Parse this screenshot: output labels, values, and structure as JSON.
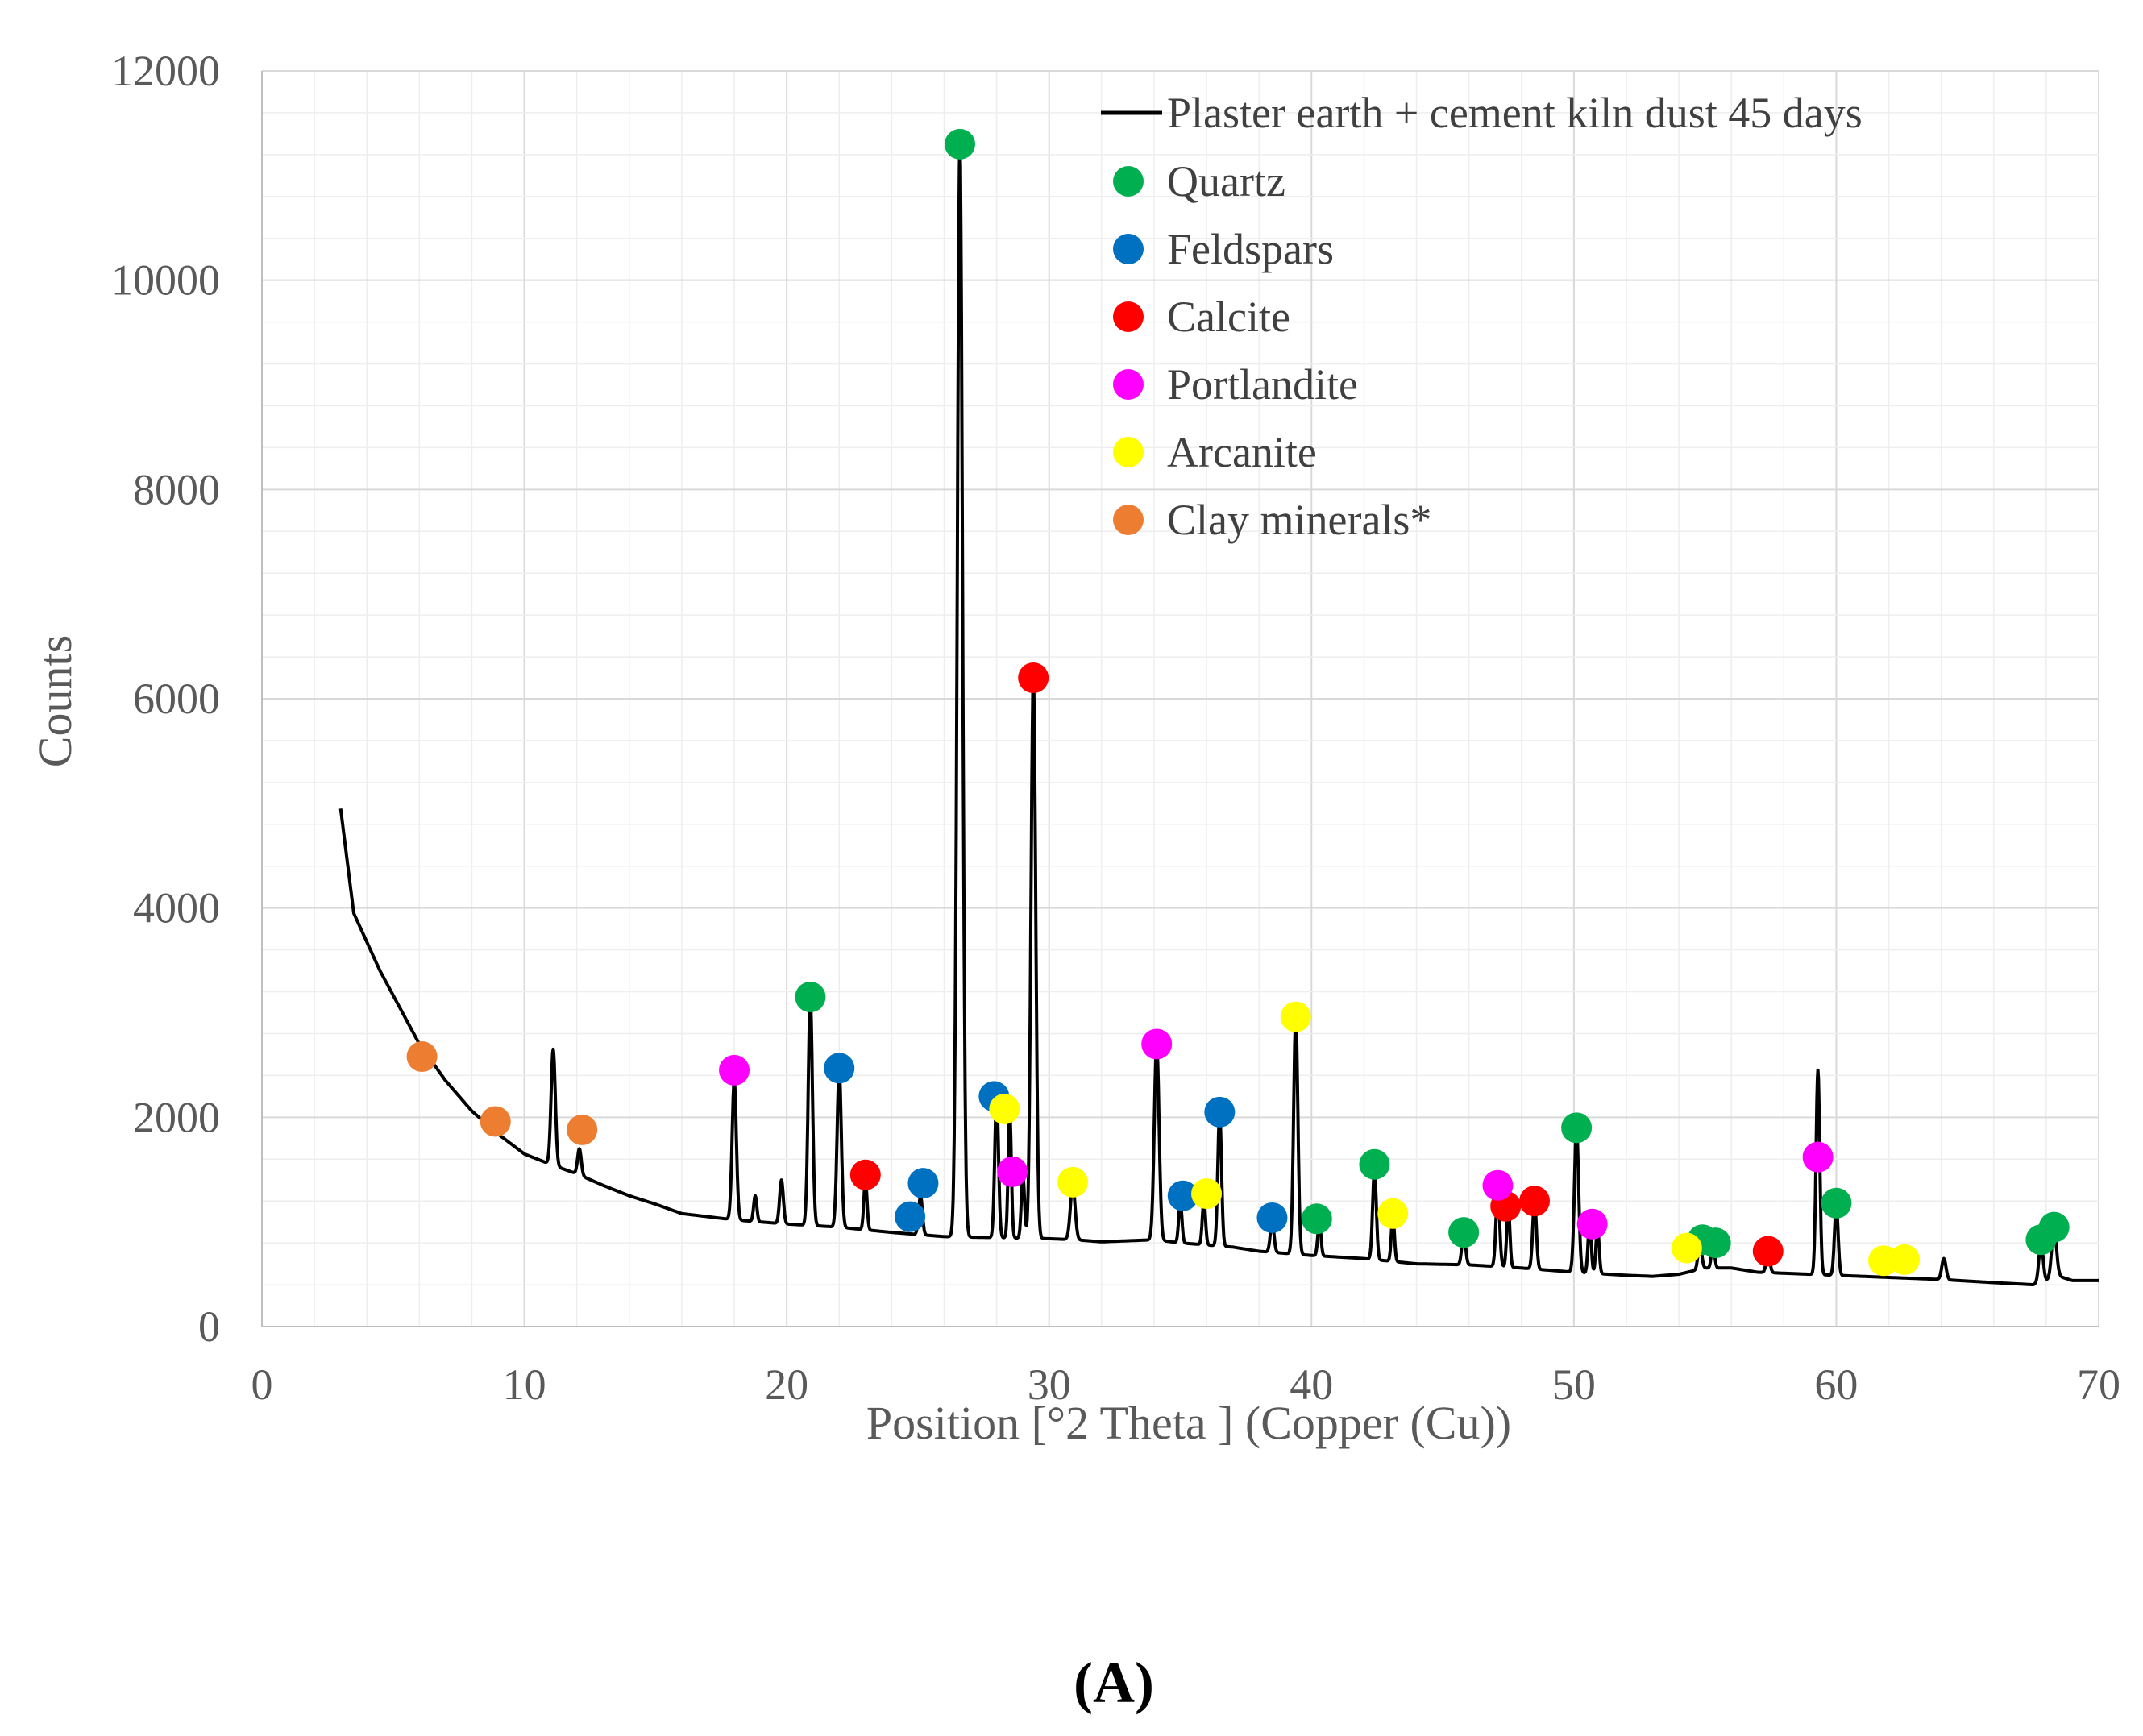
{
  "chart_data": {
    "type": "line",
    "xlabel": "Position [°2 Theta ] (Copper (Cu))",
    "ylabel": "Counts",
    "xlim": [
      0,
      70
    ],
    "ylim": [
      0,
      12000
    ],
    "x_ticks": [
      "0",
      "10",
      "20",
      "30",
      "40",
      "50",
      "60",
      "70"
    ],
    "y_ticks": [
      "0",
      "2000",
      "4000",
      "6000",
      "8000",
      "10000",
      "12000"
    ],
    "grid": true,
    "legend_position": "top-right",
    "panel_label": "A",
    "line_series": {
      "name": "Plaster earth + cement kiln dust 45 days",
      "color": "#000000",
      "baseline": [
        [
          3,
          4950
        ],
        [
          3.5,
          3950
        ],
        [
          4.5,
          3400
        ],
        [
          6,
          2700
        ],
        [
          7,
          2350
        ],
        [
          8,
          2060
        ],
        [
          9,
          1840
        ],
        [
          10,
          1650
        ],
        [
          11,
          1550
        ],
        [
          12,
          1460
        ],
        [
          13,
          1350
        ],
        [
          14,
          1250
        ],
        [
          15,
          1170
        ],
        [
          16,
          1080
        ],
        [
          17,
          1050
        ],
        [
          18,
          1020
        ],
        [
          20,
          980
        ],
        [
          22,
          950
        ],
        [
          24,
          900
        ],
        [
          26,
          860
        ],
        [
          28,
          850
        ],
        [
          30,
          840
        ],
        [
          31,
          830
        ],
        [
          32,
          810
        ],
        [
          33,
          820
        ],
        [
          34,
          830
        ],
        [
          35,
          800
        ],
        [
          37,
          760
        ],
        [
          38,
          720
        ],
        [
          39,
          700
        ],
        [
          40,
          680
        ],
        [
          42,
          650
        ],
        [
          44,
          600
        ],
        [
          46,
          590
        ],
        [
          48,
          560
        ],
        [
          50,
          520
        ],
        [
          52,
          490
        ],
        [
          53,
          480
        ],
        [
          54,
          500
        ],
        [
          55,
          560
        ],
        [
          56,
          560
        ],
        [
          57,
          520
        ],
        [
          58,
          510
        ],
        [
          59,
          500
        ],
        [
          60,
          490
        ],
        [
          62,
          470
        ],
        [
          64,
          450
        ],
        [
          66,
          420
        ],
        [
          67.5,
          400
        ],
        [
          68.5,
          480
        ],
        [
          69,
          440
        ],
        [
          70,
          440
        ]
      ],
      "peaks": [
        [
          11.1,
          2650,
          0.08
        ],
        [
          12.1,
          1700,
          0.07
        ],
        [
          18.0,
          2350,
          0.08
        ],
        [
          18.8,
          1250,
          0.06
        ],
        [
          19.8,
          1400,
          0.07
        ],
        [
          20.9,
          3150,
          0.08
        ],
        [
          22.0,
          2450,
          0.08
        ],
        [
          23.0,
          1400,
          0.06
        ],
        [
          25.1,
          1250,
          0.07
        ],
        [
          26.6,
          11300,
          0.1
        ],
        [
          28.0,
          2200,
          0.07
        ],
        [
          28.5,
          2050,
          0.06
        ],
        [
          29.0,
          1450,
          0.06
        ],
        [
          29.4,
          6200,
          0.09
        ],
        [
          30.9,
          1350,
          0.09
        ],
        [
          34.1,
          2700,
          0.09
        ],
        [
          35.0,
          1200,
          0.06
        ],
        [
          35.9,
          1200,
          0.06
        ],
        [
          36.5,
          2050,
          0.07
        ],
        [
          38.5,
          1000,
          0.07
        ],
        [
          39.4,
          2950,
          0.08
        ],
        [
          40.3,
          1000,
          0.06
        ],
        [
          42.4,
          1500,
          0.07
        ],
        [
          43.1,
          1050,
          0.06
        ],
        [
          45.8,
          900,
          0.07
        ],
        [
          47.1,
          1300,
          0.07
        ],
        [
          47.5,
          1150,
          0.06
        ],
        [
          48.5,
          1200,
          0.07
        ],
        [
          50.1,
          1900,
          0.08
        ],
        [
          50.6,
          1000,
          0.06
        ],
        [
          50.9,
          950,
          0.06
        ],
        [
          54.8,
          800,
          0.07
        ],
        [
          55.3,
          800,
          0.06
        ],
        [
          57.4,
          700,
          0.07
        ],
        [
          59.3,
          2450,
          0.07
        ],
        [
          60.0,
          1150,
          0.07
        ],
        [
          64.1,
          650,
          0.08
        ],
        [
          67.8,
          800,
          0.08
        ],
        [
          68.3,
          950,
          0.09
        ]
      ]
    },
    "marker_series": [
      {
        "name": "Quartz",
        "color": "#00b050",
        "points": [
          [
            20.9,
            3150
          ],
          [
            26.6,
            11300
          ],
          [
            40.2,
            1030
          ],
          [
            42.4,
            1550
          ],
          [
            45.8,
            900
          ],
          [
            50.1,
            1900
          ],
          [
            54.9,
            830
          ],
          [
            55.4,
            800
          ],
          [
            60.0,
            1180
          ],
          [
            67.8,
            830
          ],
          [
            68.3,
            950
          ]
        ]
      },
      {
        "name": "Feldspars",
        "color": "#0070c0",
        "points": [
          [
            22.0,
            2470
          ],
          [
            24.7,
            1050
          ],
          [
            25.2,
            1370
          ],
          [
            27.9,
            2200
          ],
          [
            35.1,
            1250
          ],
          [
            36.5,
            2050
          ],
          [
            38.5,
            1040
          ]
        ]
      },
      {
        "name": "Calcite",
        "color": "#ff0000",
        "points": [
          [
            23.0,
            1450
          ],
          [
            29.4,
            6200
          ],
          [
            47.4,
            1150
          ],
          [
            48.5,
            1200
          ],
          [
            57.4,
            720
          ]
        ]
      },
      {
        "name": "Portlandite",
        "color": "#ff00ff",
        "points": [
          [
            18.0,
            2450
          ],
          [
            28.6,
            1480
          ],
          [
            34.1,
            2700
          ],
          [
            47.1,
            1350
          ],
          [
            50.7,
            980
          ],
          [
            59.3,
            1620
          ]
        ]
      },
      {
        "name": "Arcanite",
        "color": "#ffff00",
        "points": [
          [
            28.3,
            2080
          ],
          [
            30.9,
            1380
          ],
          [
            36.0,
            1270
          ],
          [
            39.4,
            2960
          ],
          [
            43.1,
            1080
          ],
          [
            54.3,
            750
          ],
          [
            61.8,
            630
          ],
          [
            62.6,
            640
          ]
        ]
      },
      {
        "name": "Clay minerals*",
        "color": "#ed7d31",
        "points": [
          [
            6.1,
            2580
          ],
          [
            8.9,
            1960
          ],
          [
            12.2,
            1880
          ]
        ]
      }
    ]
  }
}
